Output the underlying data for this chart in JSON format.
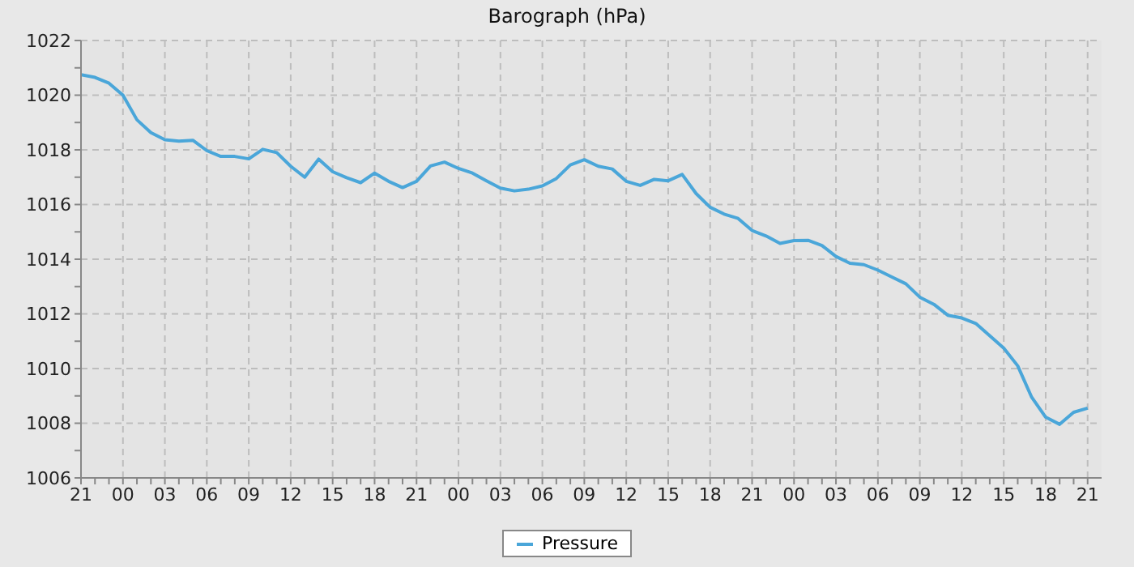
{
  "chart_data": {
    "type": "line",
    "title": "Barograph (hPa)",
    "categories": [
      "21",
      null,
      null,
      "00",
      null,
      null,
      "03",
      null,
      null,
      "06",
      null,
      null,
      "09",
      null,
      null,
      "12",
      null,
      null,
      "15",
      null,
      null,
      "18",
      null,
      null,
      "21",
      null,
      null,
      "00",
      null,
      null,
      "03",
      null,
      null,
      "06",
      null,
      null,
      "09",
      null,
      null,
      "12",
      null,
      null,
      "15",
      null,
      null,
      "18",
      null,
      null,
      "21",
      null,
      null,
      "00",
      null,
      null,
      "03",
      null,
      null,
      "06",
      null,
      null,
      "09",
      null,
      null,
      "12",
      null,
      null,
      "15",
      null,
      null,
      "18",
      null,
      null,
      "21"
    ],
    "series": [
      {
        "name": "Pressure",
        "color": "#4aa6d9",
        "values": [
          1020.75,
          1020.65,
          1020.44,
          1020.0,
          1019.1,
          1018.63,
          1018.37,
          1018.32,
          1018.35,
          1017.97,
          1017.76,
          1017.76,
          1017.67,
          1018.02,
          1017.9,
          1017.4,
          1017.0,
          1017.66,
          1017.2,
          1016.98,
          1016.8,
          1017.15,
          1016.85,
          1016.62,
          1016.85,
          1017.41,
          1017.55,
          1017.32,
          1017.15,
          1016.87,
          1016.6,
          1016.5,
          1016.56,
          1016.68,
          1016.95,
          1017.45,
          1017.64,
          1017.4,
          1017.3,
          1016.85,
          1016.7,
          1016.92,
          1016.87,
          1017.1,
          1016.4,
          1015.9,
          1015.65,
          1015.49,
          1015.05,
          1014.85,
          1014.58,
          1014.68,
          1014.69,
          1014.5,
          1014.1,
          1013.85,
          1013.8,
          1013.6,
          1013.35,
          1013.1,
          1012.61,
          1012.35,
          1011.95,
          1011.85,
          1011.65,
          1011.2,
          1010.75,
          1010.1,
          1008.95,
          1008.22,
          1007.96,
          1008.4,
          1008.55
        ]
      }
    ],
    "ylim": [
      1006,
      1022
    ],
    "yticks": [
      1006,
      {
        "value": 1007,
        "label": null
      },
      1008,
      {
        "value": 1009,
        "label": null
      },
      1010,
      {
        "value": 1011,
        "label": null
      },
      1012,
      {
        "value": 1013,
        "label": null
      },
      1014,
      {
        "value": 1015,
        "label": null
      },
      1016,
      {
        "value": 1017,
        "label": null
      },
      1018,
      {
        "value": 1019,
        "label": null
      },
      1020,
      {
        "value": 1021,
        "label": null
      },
      1022
    ],
    "grid": true,
    "legend": "bottom",
    "marker": "none",
    "line_style": "solid"
  }
}
